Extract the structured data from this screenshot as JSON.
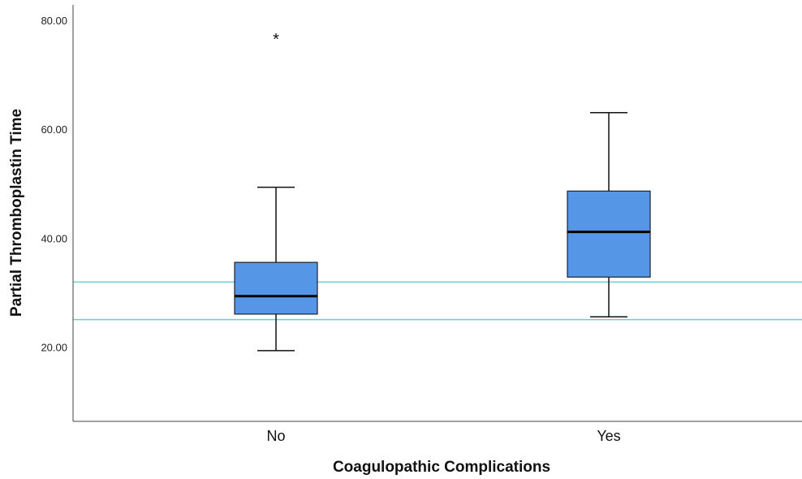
{
  "chart_data": {
    "type": "boxplot",
    "title": "",
    "xlabel": "Coagulopathic Complications",
    "ylabel": "Partial Thromboplastin Time",
    "ylim": [
      6.5,
      83
    ],
    "yticks": [
      "20.00",
      "40.00",
      "60.00",
      "80.00"
    ],
    "ytick_values": [
      20,
      40,
      60,
      80
    ],
    "grid": false,
    "box_color": "#5596e6",
    "reference_line_color": "#5fd3d6",
    "reference_lines": [
      32.1,
      25.2
    ],
    "categories": [
      "No",
      "Yes"
    ],
    "boxes": [
      {
        "category": "No",
        "whisker_low": 19.5,
        "q1": 26.2,
        "median": 29.5,
        "q3": 35.7,
        "whisker_high": 49.5,
        "outliers": [
          {
            "value": 77,
            "marker": "*"
          }
        ]
      },
      {
        "category": "Yes",
        "whisker_low": 25.7,
        "q1": 33.0,
        "median": 41.3,
        "q3": 48.8,
        "whisker_high": 63.2,
        "outliers": []
      }
    ]
  }
}
